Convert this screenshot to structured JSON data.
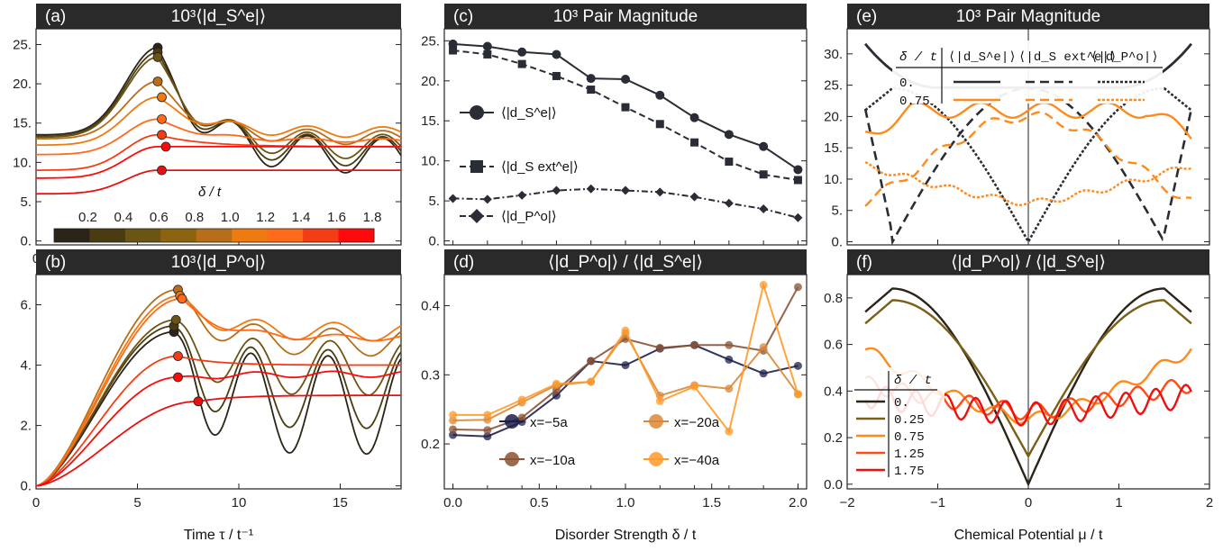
{
  "chart_data": [
    {
      "id": "a",
      "type": "line",
      "label": "(a)",
      "title": "10³⟨|d_S^e|⟩",
      "xlim": [
        0,
        18
      ],
      "ylim": [
        -0.5,
        27
      ],
      "xticks": [
        0,
        5,
        10,
        15
      ],
      "yticks": [
        0,
        5,
        10,
        15,
        20,
        25
      ],
      "ytick_labels": [
        "0.",
        "5.",
        "10.",
        "15.",
        "20.",
        "25."
      ],
      "colorbar": {
        "title": "δ / t",
        "labels": [
          "0.2",
          "0.4",
          "0.6",
          "0.8",
          "1.0",
          "1.2",
          "1.4",
          "1.6",
          "1.8"
        ],
        "colors": [
          "#2b2418",
          "#4a3c10",
          "#6b5414",
          "#8c6410",
          "#b86e18",
          "#ee7a10",
          "#ff6a1a",
          "#f63c14",
          "#ff0a0a"
        ]
      },
      "series": [
        {
          "color": "#2b2418",
          "start": 13.5,
          "peak": 24.6,
          "osc": [
            11,
            8.0,
            6.5
          ],
          "end": 13.0,
          "marker": [
            6.0,
            24.6
          ]
        },
        {
          "color": "#4a3c10",
          "start": 13.3,
          "peak": 24.0,
          "osc": [
            11.5,
            9.0,
            8.0
          ],
          "end": 13.2,
          "marker": [
            6.0,
            24.0
          ]
        },
        {
          "color": "#6b5414",
          "start": 13.2,
          "peak": 23.4,
          "osc": [
            12,
            10,
            9.5
          ],
          "end": 13.5,
          "marker": [
            6.0,
            23.4
          ]
        },
        {
          "color": "#b86e18",
          "start": 13.0,
          "peak": 20.3,
          "osc": [
            13,
            12,
            12
          ],
          "end": 14.0,
          "marker": [
            6.0,
            20.3
          ]
        },
        {
          "color": "#ee7a10",
          "start": 12.2,
          "peak": 18.3,
          "osc": [
            13.5,
            13,
            13
          ],
          "end": 14.5,
          "marker": [
            6.2,
            18.3
          ]
        },
        {
          "color": "#ff6a1a",
          "start": 11.0,
          "peak": 15.5,
          "osc": [
            13,
            12.5,
            12.5
          ],
          "end": 13.0,
          "marker": [
            6.2,
            15.5
          ]
        },
        {
          "color": "#f63c14",
          "start": 9.0,
          "peak": 13.5,
          "osc": [
            12,
            12,
            12
          ],
          "end": 12.0,
          "marker": [
            6.2,
            13.5
          ]
        },
        {
          "color": "#ff0a0a",
          "start": 8.0,
          "peak": 12.0,
          "osc": [
            12,
            12,
            12
          ],
          "end": 12.0,
          "marker": [
            6.4,
            12.0
          ]
        },
        {
          "color": "#e81010",
          "start": 6.0,
          "peak": 9.0,
          "osc": [
            9,
            9,
            9
          ],
          "end": 9.0,
          "marker": [
            6.2,
            9.0
          ]
        }
      ]
    },
    {
      "id": "b",
      "type": "line",
      "label": "(b)",
      "title": "10³⟨|d_P^o|⟩",
      "xlim": [
        0,
        18
      ],
      "ylim": [
        -0.1,
        7.0
      ],
      "xticks": [
        0,
        5,
        10,
        15
      ],
      "xtick_labels": [
        "0",
        "5",
        "10",
        "15"
      ],
      "yticks": [
        0,
        2,
        4,
        6
      ],
      "ytick_labels": [
        "0.",
        "2.",
        "4.",
        "6."
      ],
      "xlabel": "Time τ / t⁻¹",
      "series": [
        {
          "color": "#2b2418",
          "peak": 5.1,
          "tpk": 6.8,
          "trough": [
            1.05,
            1.05,
            1.2
          ],
          "end": 4.3,
          "marker": [
            6.8,
            5.1
          ]
        },
        {
          "color": "#4a3c10",
          "peak": 5.3,
          "tpk": 6.8,
          "trough": [
            2.0,
            1.9,
            2.0
          ],
          "end": 4.5,
          "marker": [
            6.8,
            5.3
          ]
        },
        {
          "color": "#6b5414",
          "peak": 5.5,
          "tpk": 6.9,
          "trough": [
            3.0,
            3.0,
            3.0
          ],
          "end": 4.8,
          "marker": [
            6.9,
            5.5
          ]
        },
        {
          "color": "#b86e18",
          "peak": 6.5,
          "tpk": 7.0,
          "trough": [
            4.2,
            4.3,
            4.5
          ],
          "end": 5.2,
          "marker": [
            7.0,
            6.5
          ]
        },
        {
          "color": "#ee7a10",
          "peak": 6.3,
          "tpk": 7.1,
          "trough": [
            4.8,
            4.8,
            4.9
          ],
          "end": 5.4,
          "marker": [
            7.1,
            6.3
          ]
        },
        {
          "color": "#ff6a1a",
          "peak": 6.2,
          "tpk": 7.2,
          "trough": [
            4.8,
            4.8,
            4.8
          ],
          "end": 5.0,
          "marker": [
            7.2,
            6.2
          ]
        },
        {
          "color": "#f63c14",
          "peak": 4.3,
          "tpk": 7.0,
          "trough": [
            4.0,
            4.0,
            4.0
          ],
          "end": 4.0,
          "marker": [
            7.0,
            4.3
          ]
        },
        {
          "color": "#ff0a0a",
          "peak": 3.6,
          "tpk": 7.0,
          "trough": [
            3.6,
            3.6,
            3.6
          ],
          "end": 3.8,
          "marker": [
            7.0,
            3.6
          ]
        },
        {
          "color": "#e81010",
          "peak": 2.8,
          "tpk": 8.0,
          "trough": [
            3.0,
            3.0,
            3.0
          ],
          "end": 3.0,
          "marker": [
            8.0,
            2.8
          ]
        }
      ]
    },
    {
      "id": "c",
      "type": "line",
      "label": "(c)",
      "title": "10³ Pair Magnitude",
      "xlim": [
        -0.05,
        2.05
      ],
      "ylim": [
        -0.5,
        26.5
      ],
      "yticks": [
        0,
        5,
        10,
        15,
        20,
        25
      ],
      "ytick_labels": [
        "0.",
        "5.",
        "10.",
        "15.",
        "20.",
        "25."
      ],
      "x": [
        0,
        0.2,
        0.4,
        0.6,
        0.8,
        1.0,
        1.2,
        1.4,
        1.6,
        1.8,
        2.0
      ],
      "series": [
        {
          "name": "⟨|d_S^e|⟩",
          "marker": "circle",
          "dash": "",
          "values": [
            24.6,
            24.3,
            23.6,
            23.3,
            20.3,
            20.2,
            18.2,
            15.4,
            13.3,
            11.8,
            8.9
          ]
        },
        {
          "name": "⟨|d_S ext^e|⟩",
          "marker": "square",
          "dash": "7,4",
          "values": [
            23.8,
            23.3,
            22.1,
            20.6,
            18.9,
            16.7,
            14.6,
            12.3,
            9.9,
            8.3,
            7.6
          ]
        },
        {
          "name": "⟨|d_P^o|⟩",
          "marker": "diamond",
          "dash": "7,3,2,3",
          "values": [
            5.3,
            5.2,
            5.7,
            6.3,
            6.5,
            6.3,
            6.1,
            5.5,
            4.7,
            4.0,
            2.9
          ]
        }
      ]
    },
    {
      "id": "d",
      "type": "line",
      "label": "(d)",
      "title": "⟨|d_P^o|⟩ / ⟨|d_S^e|⟩",
      "xlim": [
        -0.05,
        2.05
      ],
      "ylim": [
        0.135,
        0.445
      ],
      "xticks": [
        0,
        0.5,
        1.0,
        1.5,
        2.0
      ],
      "xtick_labels": [
        "0.0",
        "0.5",
        "1.0",
        "1.5",
        "2.0"
      ],
      "yticks": [
        0.2,
        0.3,
        0.4
      ],
      "ytick_labels": [
        "0.2",
        "0.3",
        "0.4"
      ],
      "xlabel": "Disorder Strength δ / t",
      "x": [
        0,
        0.2,
        0.4,
        0.6,
        0.8,
        1.0,
        1.2,
        1.4,
        1.6,
        1.8,
        2.0
      ],
      "series": [
        {
          "name": "x=−5a",
          "color": "#1c1f4a",
          "values": [
            0.213,
            0.211,
            0.232,
            0.27,
            0.32,
            0.314,
            0.338,
            0.343,
            0.322,
            0.302,
            0.313
          ]
        },
        {
          "name": "x=−10a",
          "color": "#8b5234",
          "values": [
            0.221,
            0.22,
            0.238,
            0.278,
            0.32,
            0.352,
            0.339,
            0.343,
            0.343,
            0.335,
            0.427
          ]
        },
        {
          "name": "x=−20a",
          "color": "#d98838",
          "values": [
            0.234,
            0.235,
            0.26,
            0.285,
            0.29,
            0.36,
            0.27,
            0.285,
            0.28,
            0.34,
            0.272
          ]
        },
        {
          "name": "x=−40a",
          "color": "#ff9a2a",
          "values": [
            0.242,
            0.242,
            0.264,
            0.287,
            0.29,
            0.364,
            0.262,
            0.283,
            0.218,
            0.43,
            0.272
          ]
        }
      ],
      "legend_order": [
        "x=−5a",
        "x=−20a",
        "x=−10a",
        "x=−40a"
      ]
    },
    {
      "id": "e",
      "type": "line",
      "label": "(e)",
      "title": "10³ Pair Magnitude",
      "xlim": [
        -2,
        2
      ],
      "ylim": [
        -0.5,
        34
      ],
      "yticks": [
        0,
        5,
        10,
        15,
        20,
        25,
        30
      ],
      "ytick_labels": [
        "0.",
        "5.",
        "10.",
        "15.",
        "20.",
        "25.",
        "30."
      ],
      "legend_header": [
        "δ / t",
        "⟨|d_S^e|⟩",
        "⟨|d_S ext^e|⟩",
        "⟨|d_P^o|⟩"
      ],
      "legend_rows": [
        "0.",
        "0.75"
      ]
    },
    {
      "id": "f",
      "type": "line",
      "label": "(f)",
      "title": "⟨|d_P^o|⟩ / ⟨|d_S^e|⟩",
      "xlim": [
        -2,
        2
      ],
      "ylim": [
        -0.02,
        0.9
      ],
      "xticks": [
        -2,
        -1,
        0,
        1,
        2
      ],
      "xtick_labels": [
        "−2",
        "−1",
        "0",
        "1",
        "2"
      ],
      "yticks": [
        0,
        0.2,
        0.4,
        0.6,
        0.8
      ],
      "ytick_labels": [
        "0.0",
        "0.2",
        "0.4",
        "0.6",
        "0.8"
      ],
      "xlabel": "Chemical Potential μ / t",
      "legend_title": "δ / t",
      "series": [
        {
          "name": "0.",
          "color": "#2b2418"
        },
        {
          "name": "0.25",
          "color": "#7a5f16"
        },
        {
          "name": "0.75",
          "color": "#ff8a1c"
        },
        {
          "name": "1.25",
          "color": "#ff4a18"
        },
        {
          "name": "1.75",
          "color": "#ee1010"
        }
      ]
    }
  ]
}
